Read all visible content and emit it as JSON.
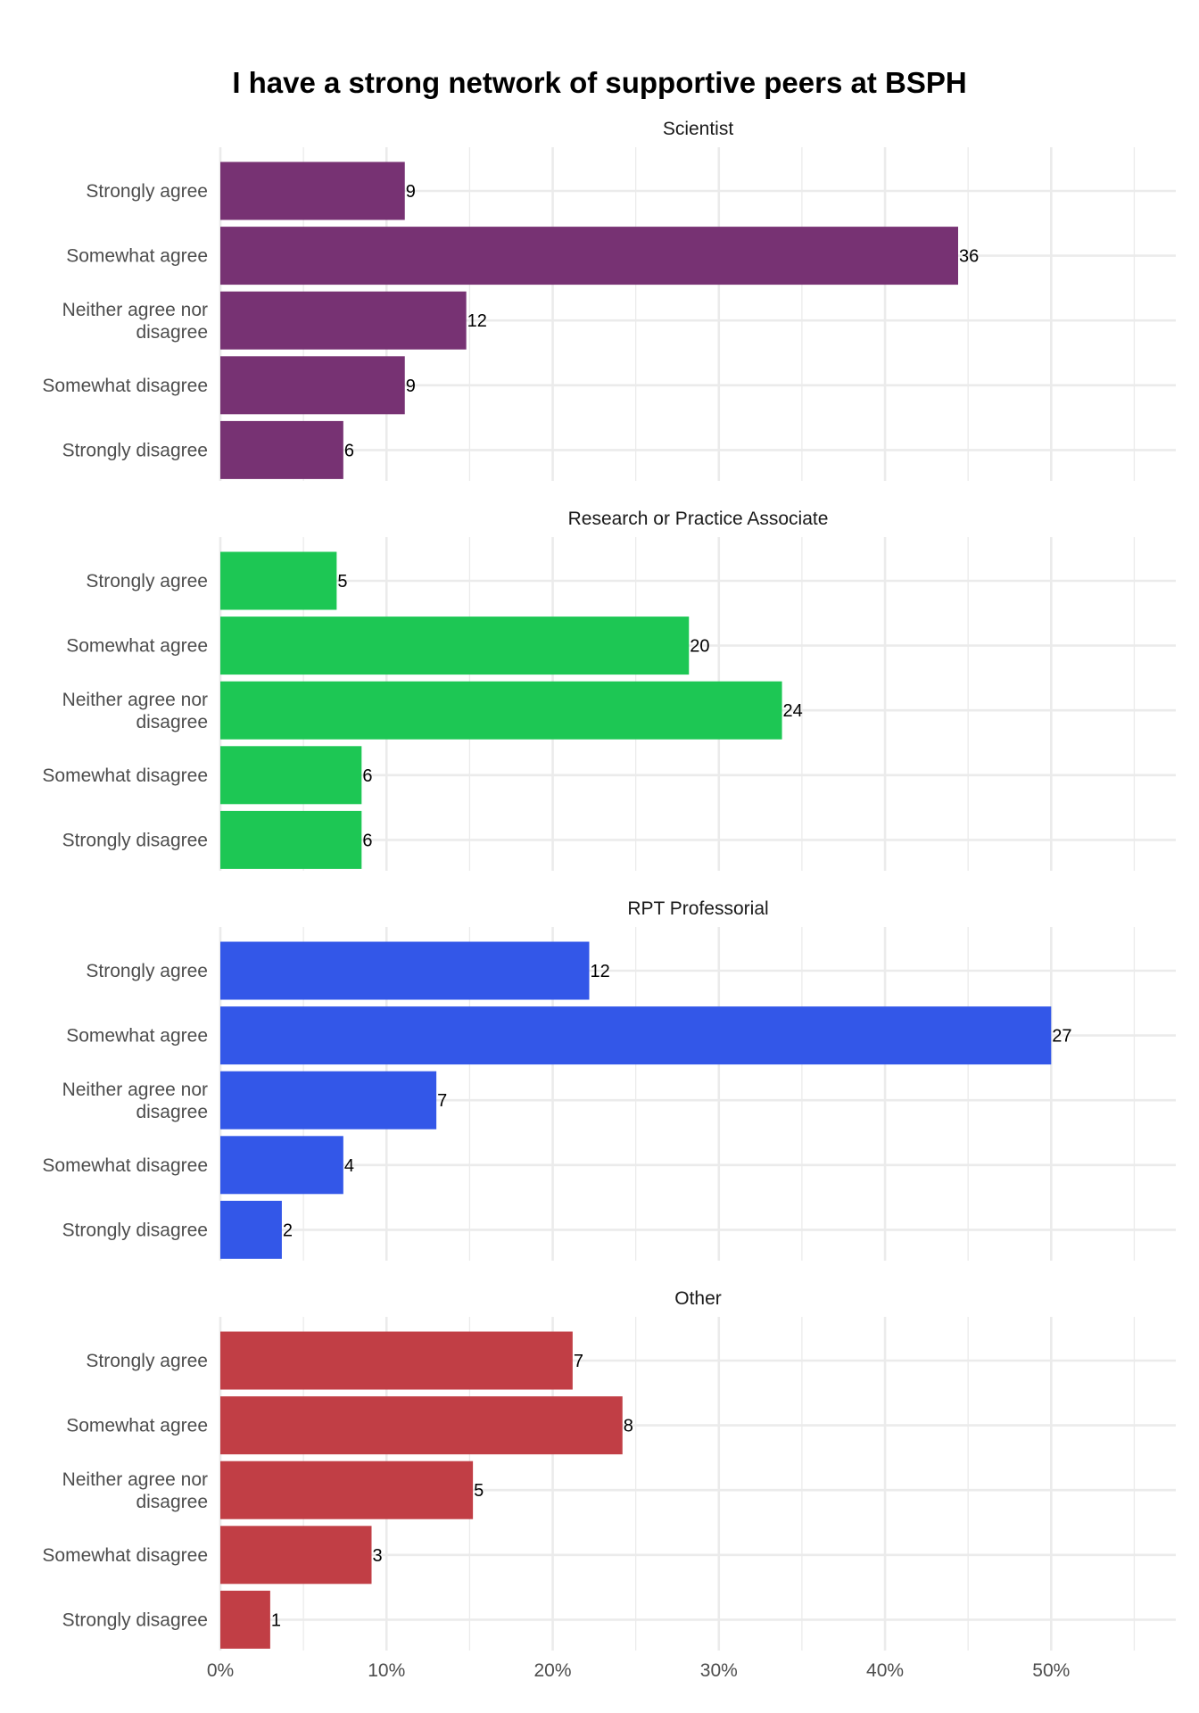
{
  "chart_data": {
    "type": "bar",
    "orientation": "horizontal",
    "title": "I have a strong network of supportive peers at BSPH",
    "xlabel": "",
    "ylabel": "",
    "categories": [
      "Strongly agree",
      "Somewhat agree",
      "Neither agree nor disagree",
      "Somewhat disagree",
      "Strongly disagree"
    ],
    "x_axis": {
      "ticks": [
        0,
        10,
        20,
        30,
        40,
        50
      ],
      "tick_labels": [
        "0%",
        "10%",
        "20%",
        "30%",
        "40%",
        "50%"
      ],
      "xlim": [
        0,
        57.5
      ],
      "unit": "%"
    },
    "grid": true,
    "panels": [
      {
        "title": "Scientist",
        "color": "#773273",
        "counts": [
          9,
          36,
          12,
          9,
          6
        ],
        "percents": [
          11.1,
          44.4,
          14.8,
          11.1,
          7.4
        ]
      },
      {
        "title": "Research or Practice Associate",
        "color": "#1DC754",
        "counts": [
          5,
          20,
          24,
          6,
          6
        ],
        "percents": [
          7.0,
          28.2,
          33.8,
          8.5,
          8.5
        ]
      },
      {
        "title": "RPT Professorial",
        "color": "#3357E8",
        "counts": [
          12,
          27,
          7,
          4,
          2
        ],
        "percents": [
          22.2,
          50.0,
          13.0,
          7.4,
          3.7
        ]
      },
      {
        "title": "Other",
        "color": "#C13E45",
        "counts": [
          7,
          8,
          5,
          3,
          1
        ],
        "percents": [
          21.2,
          24.2,
          15.2,
          9.1,
          3.0
        ]
      }
    ]
  }
}
